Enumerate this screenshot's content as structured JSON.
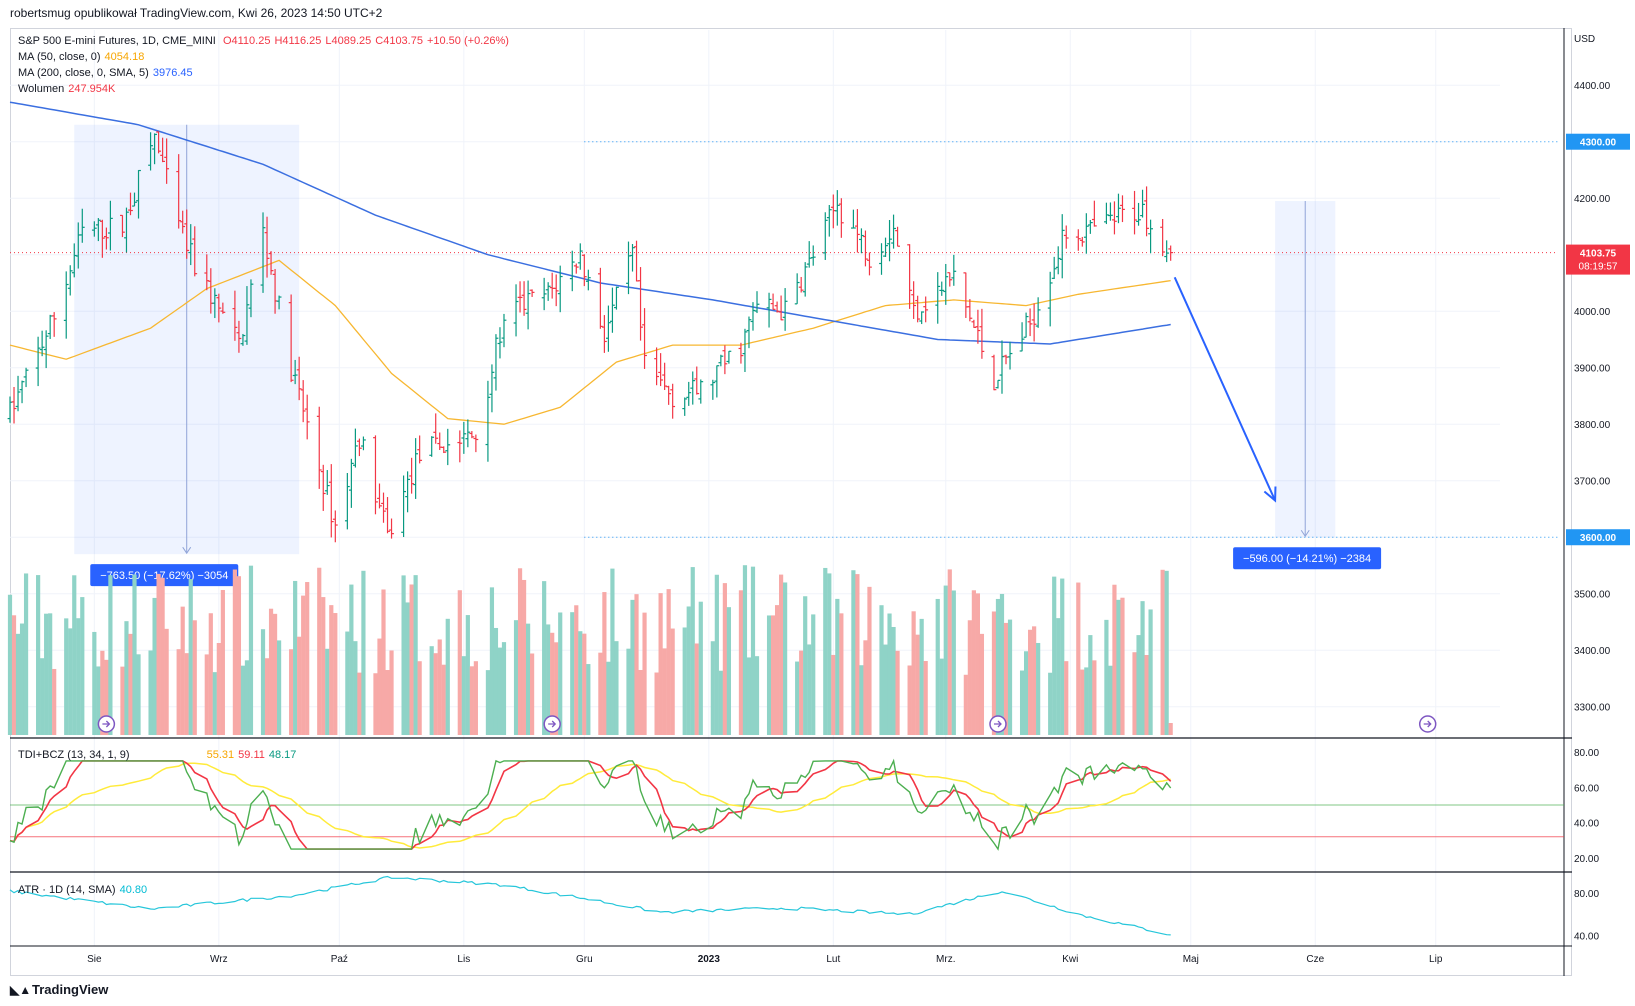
{
  "header": {
    "publisher_line": "robertsmug opublikował TradingView.com, Kwi 26, 2023 14:50 UTC+2"
  },
  "legend": {
    "symbol": "S&P 500 E-mini Futures, 1D, CME_MINI",
    "open_label": "O",
    "open": "4110.25",
    "high_label": "H",
    "high": "4116.25",
    "low_label": "L",
    "low": "4089.25",
    "close_label": "C",
    "close": "4103.75",
    "change": "+10.50 (+0.26%)",
    "ma50_label": "MA (50, close, 0)",
    "ma50_value": "4054.18",
    "ma200_label": "MA (200, close, 0, SMA, 5)",
    "ma200_value": "3976.45",
    "volume_label": "Wolumen",
    "volume_value": "247.954K",
    "tdi_label": "TDI+BCZ (13, 34, 1, 9)",
    "tdi_v1": "55.31",
    "tdi_v2": "59.11",
    "tdi_v3": "48.17",
    "atr_label": "ATR · 1D (14, SMA)",
    "atr_value": "40.80"
  },
  "axis": {
    "currency": "USD",
    "price_ticks": [
      "4400.00",
      "4300.00",
      "4200.00",
      "4100.00",
      "4000.00",
      "3900.00",
      "3800.00",
      "3700.00",
      "3600.00",
      "3500.00",
      "3400.00",
      "3300.00"
    ],
    "tdi_ticks": [
      "80.00",
      "60.00",
      "40.00",
      "20.00"
    ],
    "atr_ticks": [
      "80.00",
      "40.00"
    ],
    "time_labels": [
      "Sie",
      "Wrz",
      "Paź",
      "Lis",
      "Gru",
      "2023",
      "Lut",
      "Mrz.",
      "Kwi",
      "Maj",
      "Cze",
      "Lip"
    ]
  },
  "price_tags": {
    "level_high": "4300.00",
    "level_low": "3600.00",
    "last_price": "4103.75",
    "countdown": "08:19:57"
  },
  "measurements": {
    "left_box": "−763.50 (−17.62%) −3054",
    "right_box": "−596.00 (−14.21%) −2384"
  },
  "footer": {
    "brand": "TradingView"
  },
  "colors": {
    "up": "#089981",
    "down": "#f23645",
    "ma50": "#f7b731",
    "ma200": "#3b6fe0",
    "measure": "#2962ff",
    "tdi_green": "#4caf50",
    "tdi_red": "#f23645",
    "tdi_yellow": "#ffeb3b",
    "atr": "#26c6da"
  },
  "chart_data": {
    "type": "candlestick",
    "title": "S&P 500 E-mini Futures, 1D, CME_MINI",
    "ylabel": "USD",
    "ylim": [
      3250,
      4480
    ],
    "x_range_start": "2022-07-11",
    "x_range_end": "2023-07-17",
    "last_bar_date": "2023-04-26",
    "horizontal_levels": [
      4300,
      3600
    ],
    "price_anchors": [
      {
        "date": "2022-07-11",
        "price": 3820
      },
      {
        "date": "2022-07-22",
        "price": 3990
      },
      {
        "date": "2022-07-29",
        "price": 4140
      },
      {
        "date": "2022-08-08",
        "price": 4150
      },
      {
        "date": "2022-08-16",
        "price": 4310
      },
      {
        "date": "2022-08-22",
        "price": 4150
      },
      {
        "date": "2022-08-26",
        "price": 4080
      },
      {
        "date": "2022-09-06",
        "price": 3940
      },
      {
        "date": "2022-09-12",
        "price": 4140
      },
      {
        "date": "2022-09-19",
        "price": 3900
      },
      {
        "date": "2022-09-30",
        "price": 3620
      },
      {
        "date": "2022-10-06",
        "price": 3780
      },
      {
        "date": "2022-10-13",
        "price": 3600
      },
      {
        "date": "2022-10-21",
        "price": 3750
      },
      {
        "date": "2022-11-04",
        "price": 3780
      },
      {
        "date": "2022-11-10",
        "price": 3960
      },
      {
        "date": "2022-11-15",
        "price": 4010
      },
      {
        "date": "2022-11-22",
        "price": 4030
      },
      {
        "date": "2022-11-30",
        "price": 4100
      },
      {
        "date": "2022-12-06",
        "price": 3960
      },
      {
        "date": "2022-12-13",
        "price": 4100
      },
      {
        "date": "2022-12-16",
        "price": 3900
      },
      {
        "date": "2022-12-23",
        "price": 3850
      },
      {
        "date": "2022-12-30",
        "price": 3860
      },
      {
        "date": "2023-01-09",
        "price": 3940
      },
      {
        "date": "2023-01-13",
        "price": 4010
      },
      {
        "date": "2023-01-20",
        "price": 4000
      },
      {
        "date": "2023-01-27",
        "price": 4100
      },
      {
        "date": "2023-02-02",
        "price": 4190
      },
      {
        "date": "2023-02-10",
        "price": 4100
      },
      {
        "date": "2023-02-16",
        "price": 4150
      },
      {
        "date": "2023-02-21",
        "price": 4000
      },
      {
        "date": "2023-03-03",
        "price": 4060
      },
      {
        "date": "2023-03-13",
        "price": 3880
      },
      {
        "date": "2023-03-22",
        "price": 3980
      },
      {
        "date": "2023-03-31",
        "price": 4140
      },
      {
        "date": "2023-04-06",
        "price": 4140
      },
      {
        "date": "2023-04-14",
        "price": 4170
      },
      {
        "date": "2023-04-19",
        "price": 4180
      },
      {
        "date": "2023-04-26",
        "price": 4104
      }
    ],
    "last_bar": {
      "date": "2023-04-26",
      "open": 4110.25,
      "high": 4116.25,
      "low": 4089.25,
      "close": 4103.75,
      "volume": "247.954K"
    },
    "ma50_anchors": [
      {
        "date": "2022-07-11",
        "value": 3940
      },
      {
        "date": "2022-07-25",
        "value": 3915
      },
      {
        "date": "2022-08-15",
        "value": 3970
      },
      {
        "date": "2022-08-29",
        "value": 4040
      },
      {
        "date": "2022-09-16",
        "value": 4090
      },
      {
        "date": "2022-09-30",
        "value": 4010
      },
      {
        "date": "2022-10-14",
        "value": 3890
      },
      {
        "date": "2022-10-28",
        "value": 3810
      },
      {
        "date": "2022-11-11",
        "value": 3800
      },
      {
        "date": "2022-11-25",
        "value": 3830
      },
      {
        "date": "2022-12-09",
        "value": 3910
      },
      {
        "date": "2022-12-23",
        "value": 3940
      },
      {
        "date": "2023-01-09",
        "value": 3940
      },
      {
        "date": "2023-01-27",
        "value": 3970
      },
      {
        "date": "2023-02-14",
        "value": 4010
      },
      {
        "date": "2023-03-03",
        "value": 4020
      },
      {
        "date": "2023-03-21",
        "value": 4010
      },
      {
        "date": "2023-04-03",
        "value": 4030
      },
      {
        "date": "2023-04-26",
        "value": 4054.18
      }
    ],
    "ma200_anchors": [
      {
        "date": "2022-07-11",
        "value": 4370
      },
      {
        "date": "2022-08-12",
        "value": 4330
      },
      {
        "date": "2022-09-12",
        "value": 4260
      },
      {
        "date": "2022-10-10",
        "value": 4170
      },
      {
        "date": "2022-11-07",
        "value": 4100
      },
      {
        "date": "2022-12-05",
        "value": 4050
      },
      {
        "date": "2023-01-02",
        "value": 4020
      },
      {
        "date": "2023-01-30",
        "value": 3985
      },
      {
        "date": "2023-02-27",
        "value": 3950
      },
      {
        "date": "2023-03-27",
        "value": 3942
      },
      {
        "date": "2023-04-26",
        "value": 3976.45
      }
    ],
    "measure_left": {
      "from_date": "2022-07-27",
      "to_date": "2022-09-21",
      "from_price": 4330,
      "to_price": 3570,
      "label": "−763.50 (−17.62%) −3054"
    },
    "measure_right": {
      "from_date": "2023-05-22",
      "to_date": "2023-06-06",
      "from_price": 4195,
      "to_price": 3600,
      "label": "−596.00 (−14.21%) −2384"
    },
    "forecast_arrow": {
      "from_date": "2023-04-27",
      "from_price": 4060,
      "to_date": "2023-05-22",
      "to_price": 3665
    },
    "tdi": {
      "ylim": [
        12,
        88
      ],
      "levels": [
        50,
        32
      ],
      "values": [
        55.31,
        59.11,
        48.17
      ]
    },
    "atr": {
      "ylim": [
        30,
        100
      ],
      "value": 40.8
    }
  }
}
